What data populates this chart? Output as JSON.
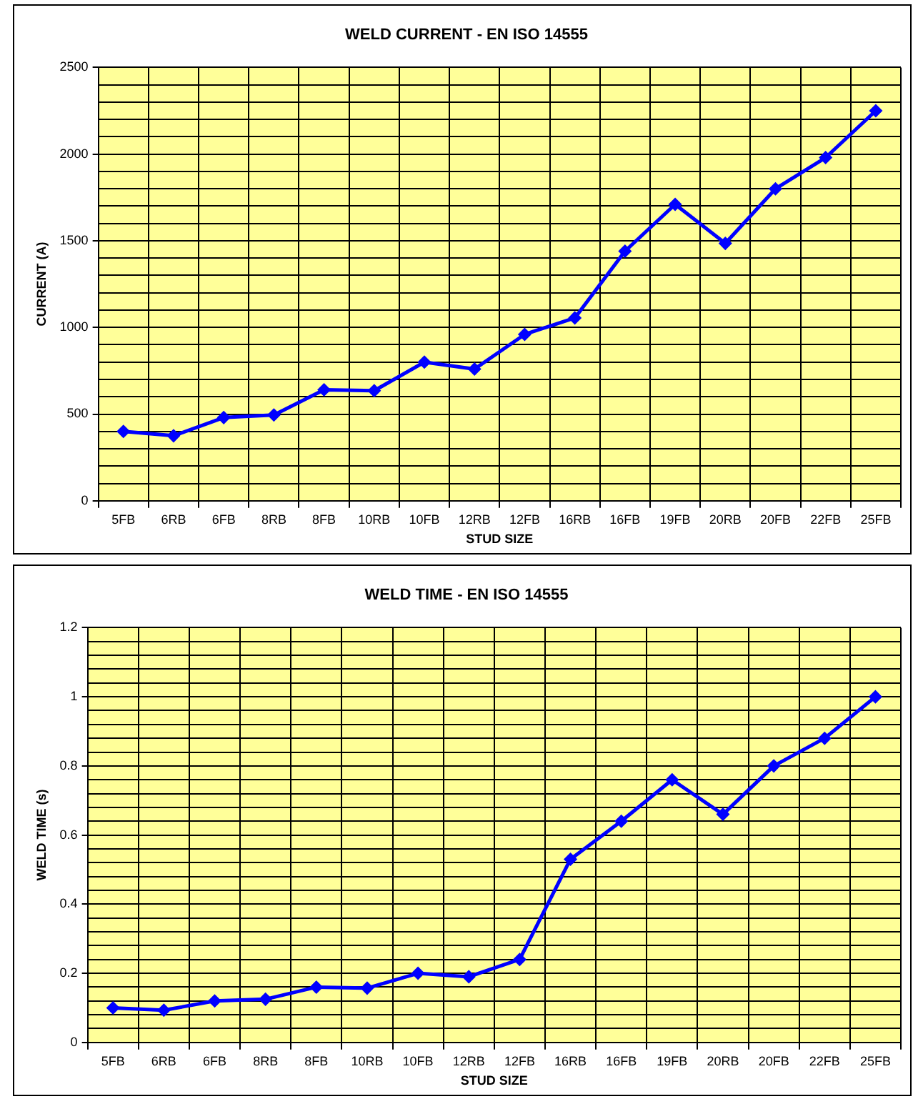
{
  "chart_data": [
    {
      "type": "line",
      "title": "WELD CURRENT - EN ISO 14555",
      "xlabel": "STUD SIZE",
      "ylabel": "CURRENT (A)",
      "categories": [
        "5FB",
        "6RB",
        "6FB",
        "8RB",
        "8FB",
        "10RB",
        "10FB",
        "12RB",
        "12FB",
        "16RB",
        "16FB",
        "19FB",
        "20RB",
        "20FB",
        "22FB",
        "25FB"
      ],
      "series": [
        {
          "color": "#0000ff",
          "values": [
            400,
            375,
            480,
            495,
            640,
            635,
            800,
            760,
            960,
            1055,
            1440,
            1710,
            1485,
            1800,
            1980,
            2250
          ]
        }
      ],
      "ylim": [
        0,
        2500
      ],
      "yticks": [
        0,
        {
          "value": 100,
          "label": null
        },
        {
          "value": 200,
          "label": null
        },
        {
          "value": 300,
          "label": null
        },
        {
          "value": 400,
          "label": null
        },
        500,
        {
          "value": 600,
          "label": null
        },
        {
          "value": 700,
          "label": null
        },
        {
          "value": 800,
          "label": null
        },
        {
          "value": 900,
          "label": null
        },
        1000,
        {
          "value": 1100,
          "label": null
        },
        {
          "value": 1200,
          "label": null
        },
        {
          "value": 1300,
          "label": null
        },
        {
          "value": 1400,
          "label": null
        },
        1500,
        {
          "value": 1600,
          "label": null
        },
        {
          "value": 1700,
          "label": null
        },
        {
          "value": 1800,
          "label": null
        },
        {
          "value": 1900,
          "label": null
        },
        2000,
        {
          "value": 2100,
          "label": null
        },
        {
          "value": 2200,
          "label": null
        },
        {
          "value": 2300,
          "label": null
        },
        {
          "value": 2400,
          "label": null
        },
        2500
      ],
      "grid": true,
      "legend": false,
      "marker": "diamond",
      "line_style": "solid"
    },
    {
      "type": "line",
      "title": "WELD TIME - EN ISO 14555",
      "xlabel": "STUD SIZE",
      "ylabel": "WELD TIME (s)",
      "categories": [
        "5FB",
        "6RB",
        "6FB",
        "8RB",
        "8FB",
        "10RB",
        "10FB",
        "12RB",
        "12FB",
        "16RB",
        "16FB",
        "19FB",
        "20RB",
        "20FB",
        "22FB",
        "25FB"
      ],
      "series": [
        {
          "color": "#0000ff",
          "values": [
            0.1,
            0.093,
            0.12,
            0.125,
            0.16,
            0.157,
            0.2,
            0.19,
            0.24,
            0.53,
            0.64,
            0.76,
            0.66,
            0.8,
            0.88,
            1.0
          ]
        }
      ],
      "ylim": [
        0,
        1.2
      ],
      "yticks": [
        0,
        {
          "value": 0.04,
          "label": null
        },
        {
          "value": 0.08,
          "label": null
        },
        {
          "value": 0.12,
          "label": null
        },
        {
          "value": 0.16,
          "label": null
        },
        0.2,
        {
          "value": 0.24,
          "label": null
        },
        {
          "value": 0.28,
          "label": null
        },
        {
          "value": 0.32,
          "label": null
        },
        {
          "value": 0.36,
          "label": null
        },
        0.4,
        {
          "value": 0.44,
          "label": null
        },
        {
          "value": 0.48,
          "label": null
        },
        {
          "value": 0.52,
          "label": null
        },
        {
          "value": 0.56,
          "label": null
        },
        0.6,
        {
          "value": 0.64,
          "label": null
        },
        {
          "value": 0.68,
          "label": null
        },
        {
          "value": 0.72,
          "label": null
        },
        {
          "value": 0.76,
          "label": null
        },
        0.8,
        {
          "value": 0.84,
          "label": null
        },
        {
          "value": 0.88,
          "label": null
        },
        {
          "value": 0.92,
          "label": null
        },
        {
          "value": 0.96,
          "label": null
        },
        1,
        {
          "value": 1.04,
          "label": null
        },
        {
          "value": 1.08,
          "label": null
        },
        {
          "value": 1.12,
          "label": null
        },
        {
          "value": 1.16,
          "label": null
        },
        1.2
      ],
      "grid": true,
      "legend": false,
      "marker": "diamond",
      "line_style": "solid"
    }
  ]
}
